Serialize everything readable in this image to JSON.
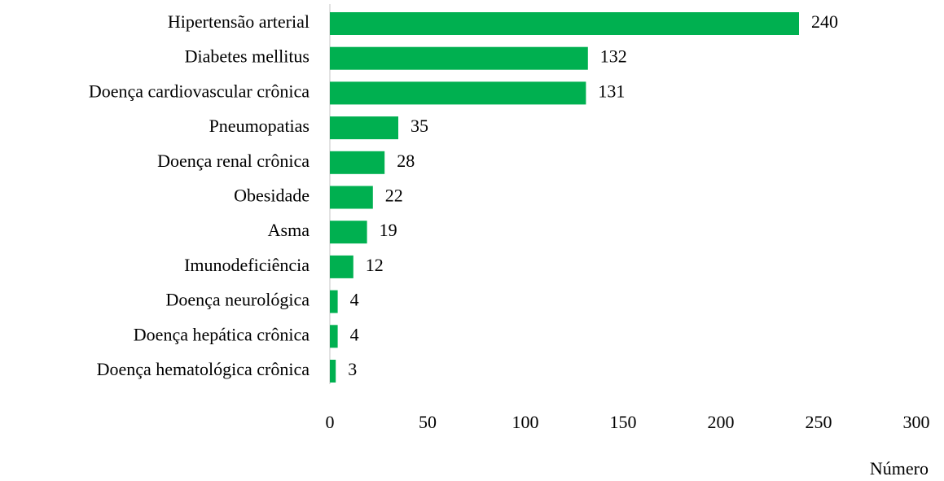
{
  "chart_data": {
    "type": "bar",
    "orientation": "horizontal",
    "x_label": "Número",
    "categories": [
      "Hipertensão arterial",
      "Diabetes mellitus",
      "Doença cardiovascular crônica",
      "Pneumopatias",
      "Doença renal crônica",
      "Obesidade",
      "Asma",
      "Imunodeficiência",
      "Doença neurológica",
      "Doença hepática crônica",
      "Doença hematológica crônica"
    ],
    "values": [
      240,
      132,
      131,
      35,
      28,
      22,
      19,
      12,
      4,
      4,
      3
    ],
    "color": "#00b050",
    "xlim": [
      0,
      300
    ],
    "xticks": [
      0,
      50,
      100,
      150,
      200,
      250,
      300
    ],
    "grid": false
  }
}
